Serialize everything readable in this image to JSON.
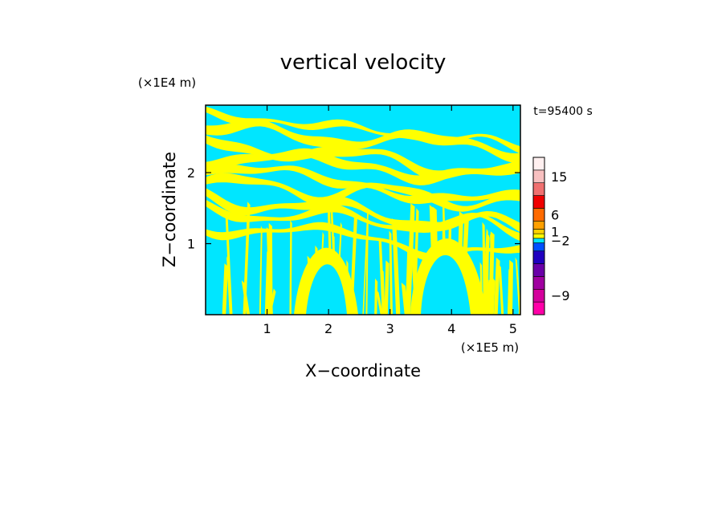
{
  "chart_data": {
    "type": "heatmap",
    "title": "vertical velocity",
    "xlabel": "X−coordinate",
    "ylabel": "Z−coordinate",
    "x_unit": "(×1E5 m)",
    "y_unit": "(×1E4 m)",
    "time_label": "t=95400 s",
    "xlim": [
      0,
      5.12
    ],
    "ylim": [
      0,
      2.95
    ],
    "x_ticks": [
      {
        "value": 1,
        "label": "1"
      },
      {
        "value": 2,
        "label": "2"
      },
      {
        "value": 3,
        "label": "3"
      },
      {
        "value": 4,
        "label": "4"
      },
      {
        "value": 5,
        "label": "5"
      }
    ],
    "y_ticks": [
      {
        "value": 1,
        "label": "1"
      },
      {
        "value": 2,
        "label": "2"
      }
    ],
    "colorbar": {
      "levels": [
        {
          "color": "#ff00a8"
        },
        {
          "color": "#d4009c"
        },
        {
          "color": "#a000a0"
        },
        {
          "color": "#6a00a8"
        },
        {
          "color": "#2000c0"
        },
        {
          "color": "#0050ff"
        },
        {
          "color": "#00e6ff"
        },
        {
          "color": "#ffff00"
        },
        {
          "color": "#ffd200"
        },
        {
          "color": "#ffa000"
        },
        {
          "color": "#ff6a00"
        },
        {
          "color": "#f00000"
        },
        {
          "color": "#f07070"
        },
        {
          "color": "#f8c0c0"
        },
        {
          "color": "#fff0f0"
        }
      ],
      "tick_labels": [
        {
          "level_index": 1,
          "label": "−9"
        },
        {
          "level_index": 6,
          "label": "−2"
        },
        {
          "level_index": 8,
          "label": "1"
        },
        {
          "level_index": 10,
          "label": "6"
        },
        {
          "level_index": 13,
          "label": "15"
        }
      ]
    },
    "field_colors": {
      "negative": "#00e6ff",
      "positive": "#ffff00"
    }
  }
}
